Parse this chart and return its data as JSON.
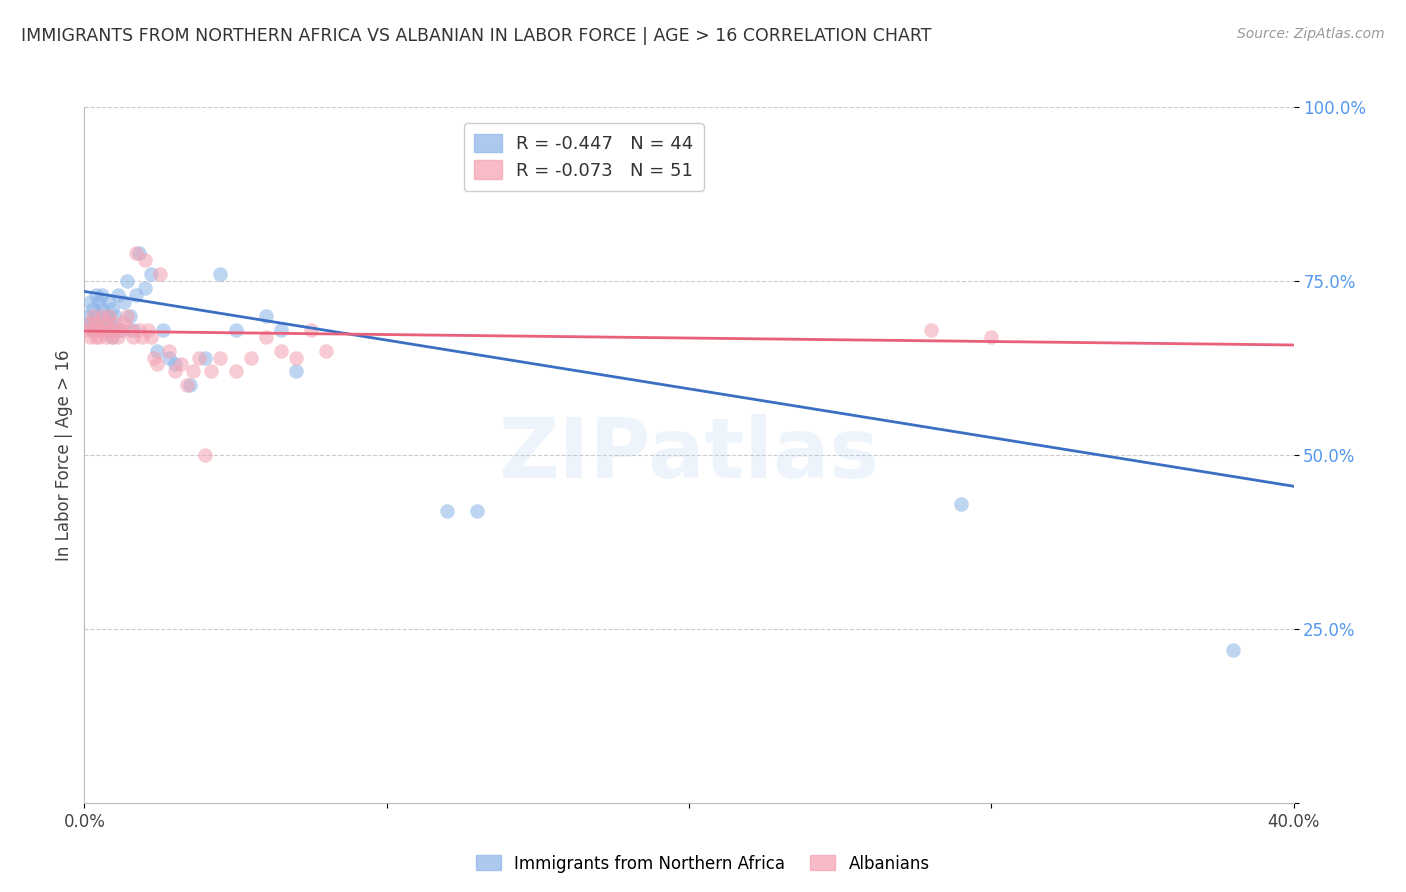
{
  "title": "IMMIGRANTS FROM NORTHERN AFRICA VS ALBANIAN IN LABOR FORCE | AGE > 16 CORRELATION CHART",
  "source_text": "Source: ZipAtlas.com",
  "ylabel": "In Labor Force | Age > 16",
  "xlim": [
    0.0,
    0.4
  ],
  "ylim": [
    0.0,
    1.0
  ],
  "x_ticks": [
    0.0,
    0.1,
    0.2,
    0.3,
    0.4
  ],
  "x_tick_labels": [
    "0.0%",
    "",
    "",
    "",
    "40.0%"
  ],
  "y_ticks": [
    0.0,
    0.25,
    0.5,
    0.75,
    1.0
  ],
  "y_tick_labels": [
    "",
    "25.0%",
    "50.0%",
    "75.0%",
    "100.0%"
  ],
  "legend_entries": [
    {
      "label": "R = -0.447   N = 44",
      "color": "#8ab4e8"
    },
    {
      "label": "R = -0.073   N = 51",
      "color": "#f4a0b0"
    }
  ],
  "blue_scatter_x": [
    0.001,
    0.002,
    0.002,
    0.003,
    0.003,
    0.004,
    0.004,
    0.005,
    0.005,
    0.006,
    0.006,
    0.007,
    0.007,
    0.008,
    0.008,
    0.009,
    0.009,
    0.01,
    0.01,
    0.011,
    0.012,
    0.013,
    0.014,
    0.015,
    0.016,
    0.017,
    0.018,
    0.02,
    0.022,
    0.024,
    0.026,
    0.028,
    0.03,
    0.035,
    0.04,
    0.045,
    0.05,
    0.06,
    0.065,
    0.07,
    0.12,
    0.13,
    0.29,
    0.38
  ],
  "blue_scatter_y": [
    0.7,
    0.69,
    0.72,
    0.71,
    0.68,
    0.73,
    0.7,
    0.72,
    0.69,
    0.71,
    0.73,
    0.7,
    0.68,
    0.72,
    0.69,
    0.67,
    0.71,
    0.7,
    0.68,
    0.73,
    0.68,
    0.72,
    0.75,
    0.7,
    0.68,
    0.73,
    0.79,
    0.74,
    0.76,
    0.65,
    0.68,
    0.64,
    0.63,
    0.6,
    0.64,
    0.76,
    0.68,
    0.7,
    0.68,
    0.62,
    0.42,
    0.42,
    0.43,
    0.22
  ],
  "pink_scatter_x": [
    0.001,
    0.002,
    0.002,
    0.003,
    0.003,
    0.004,
    0.004,
    0.005,
    0.005,
    0.006,
    0.006,
    0.007,
    0.007,
    0.008,
    0.008,
    0.009,
    0.01,
    0.01,
    0.011,
    0.012,
    0.013,
    0.014,
    0.015,
    0.016,
    0.017,
    0.018,
    0.019,
    0.02,
    0.021,
    0.022,
    0.023,
    0.024,
    0.025,
    0.028,
    0.03,
    0.032,
    0.034,
    0.036,
    0.038,
    0.04,
    0.042,
    0.045,
    0.05,
    0.055,
    0.06,
    0.065,
    0.07,
    0.075,
    0.08,
    0.28,
    0.3
  ],
  "pink_scatter_y": [
    0.68,
    0.67,
    0.69,
    0.7,
    0.68,
    0.67,
    0.69,
    0.68,
    0.67,
    0.7,
    0.68,
    0.69,
    0.67,
    0.68,
    0.7,
    0.67,
    0.68,
    0.69,
    0.67,
    0.68,
    0.69,
    0.7,
    0.68,
    0.67,
    0.79,
    0.68,
    0.67,
    0.78,
    0.68,
    0.67,
    0.64,
    0.63,
    0.76,
    0.65,
    0.62,
    0.63,
    0.6,
    0.62,
    0.64,
    0.5,
    0.62,
    0.64,
    0.62,
    0.64,
    0.67,
    0.65,
    0.64,
    0.68,
    0.65,
    0.68,
    0.67
  ],
  "blue_line_x": [
    0.0,
    0.4
  ],
  "blue_line_y": [
    0.735,
    0.455
  ],
  "pink_line_x": [
    0.0,
    0.4
  ],
  "pink_line_y": [
    0.678,
    0.658
  ],
  "blue_color": "#8ab4e8",
  "pink_color": "#f4a0b0",
  "blue_line_color": "#3a6fc4",
  "pink_line_color": "#e8607a",
  "watermark_text": "ZIPatlas",
  "background_color": "#ffffff",
  "grid_color": "#cccccc",
  "bottom_legend": [
    {
      "label": "Immigrants from Northern Africa",
      "color": "#8ab4e8"
    },
    {
      "label": "Albanians",
      "color": "#f4a0b0"
    }
  ]
}
